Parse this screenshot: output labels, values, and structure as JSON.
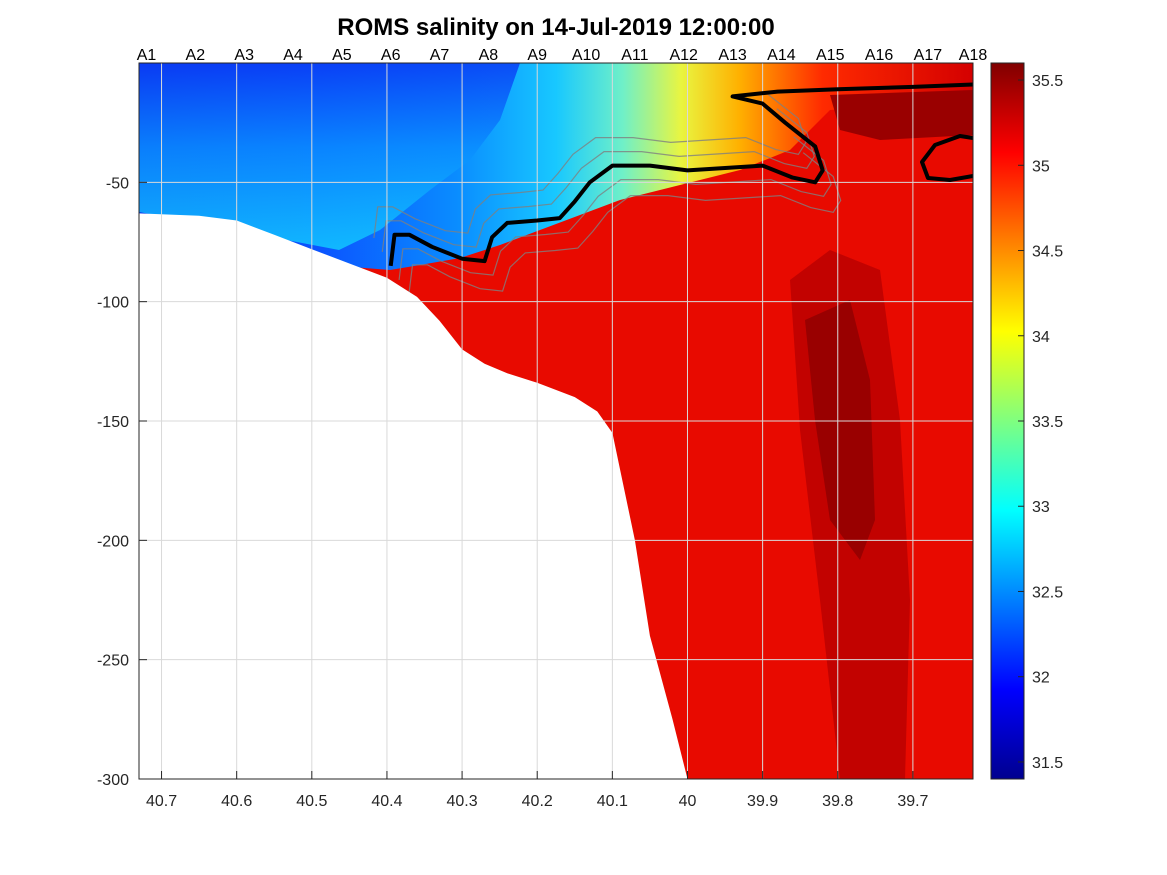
{
  "chart_data": {
    "type": "heatmap",
    "title": "ROMS salinity on 14-Jul-2019 12:00:00",
    "xlabel": "",
    "ylabel": "",
    "x_reversed": true,
    "xlim": [
      40.73,
      39.62
    ],
    "ylim": [
      -300,
      0
    ],
    "grid": true,
    "x_ticks": [
      40.7,
      40.6,
      40.5,
      40.4,
      40.3,
      40.2,
      40.1,
      40,
      39.9,
      39.8,
      39.7
    ],
    "x_tick_labels": [
      "40.7",
      "40.6",
      "40.5",
      "40.4",
      "40.3",
      "40.2",
      "40.1",
      "40",
      "39.9",
      "39.8",
      "39.7"
    ],
    "y_ticks": [
      -50,
      -100,
      -150,
      -200,
      -250,
      -300
    ],
    "y_tick_labels": [
      "-50",
      "-100",
      "-150",
      "-200",
      "-250",
      "-300"
    ],
    "stations": [
      {
        "name": "A1",
        "x": 40.72
      },
      {
        "name": "A2",
        "x": 40.655
      },
      {
        "name": "A3",
        "x": 40.59
      },
      {
        "name": "A4",
        "x": 40.525
      },
      {
        "name": "A5",
        "x": 40.46
      },
      {
        "name": "A6",
        "x": 40.395
      },
      {
        "name": "A7",
        "x": 40.33
      },
      {
        "name": "A8",
        "x": 40.265
      },
      {
        "name": "A9",
        "x": 40.2
      },
      {
        "name": "A10",
        "x": 40.135
      },
      {
        "name": "A11",
        "x": 40.07
      },
      {
        "name": "A12",
        "x": 40.005
      },
      {
        "name": "A13",
        "x": 39.94
      },
      {
        "name": "A14",
        "x": 39.875
      },
      {
        "name": "A15",
        "x": 39.81
      },
      {
        "name": "A16",
        "x": 39.745
      },
      {
        "name": "A17",
        "x": 39.68
      },
      {
        "name": "A18",
        "x": 39.62
      }
    ],
    "colorbar": {
      "range": [
        31.4,
        35.6
      ],
      "ticks": [
        31.5,
        32,
        32.5,
        33,
        33.5,
        34,
        34.5,
        35,
        35.5
      ],
      "tick_labels": [
        "31.5",
        "32",
        "32.5",
        "33",
        "33.5",
        "34",
        "34.5",
        "35",
        "35.5"
      ],
      "colormap": "jet"
    },
    "bathymetry": [
      [
        40.73,
        -63
      ],
      [
        40.65,
        -64
      ],
      [
        40.6,
        -66
      ],
      [
        40.55,
        -72
      ],
      [
        40.5,
        -78
      ],
      [
        40.45,
        -84
      ],
      [
        40.4,
        -90
      ],
      [
        40.36,
        -98
      ],
      [
        40.33,
        -108
      ],
      [
        40.3,
        -120
      ],
      [
        40.27,
        -126
      ],
      [
        40.24,
        -130
      ],
      [
        40.2,
        -134
      ],
      [
        40.15,
        -140
      ],
      [
        40.12,
        -146
      ],
      [
        40.1,
        -155
      ],
      [
        40.09,
        -170
      ],
      [
        40.07,
        -200
      ],
      [
        40.05,
        -240
      ],
      [
        40.02,
        -275
      ],
      [
        40.0,
        -300
      ]
    ],
    "surface_salinity": [
      [
        40.73,
        32.0
      ],
      [
        40.6,
        32.1
      ],
      [
        40.5,
        32.3
      ],
      [
        40.4,
        32.5
      ],
      [
        40.3,
        32.8
      ],
      [
        40.2,
        33.1
      ],
      [
        40.1,
        33.5
      ],
      [
        40.05,
        33.9
      ],
      [
        40.0,
        34.2
      ],
      [
        39.95,
        34.6
      ],
      [
        39.9,
        34.9
      ],
      [
        39.85,
        35.1
      ],
      [
        39.8,
        35.3
      ],
      [
        39.75,
        35.3
      ],
      [
        39.7,
        35.1
      ],
      [
        39.62,
        35.0
      ]
    ],
    "salinity_34_isoline": [
      [
        40.395,
        -85
      ],
      [
        40.39,
        -72
      ],
      [
        40.37,
        -72
      ],
      [
        40.34,
        -77
      ],
      [
        40.3,
        -82
      ],
      [
        40.27,
        -83
      ],
      [
        40.26,
        -73
      ],
      [
        40.24,
        -67
      ],
      [
        40.2,
        -66
      ],
      [
        40.17,
        -65
      ],
      [
        40.15,
        -58
      ],
      [
        40.13,
        -50
      ],
      [
        40.1,
        -43
      ],
      [
        40.05,
        -43
      ],
      [
        40.0,
        -45
      ],
      [
        39.95,
        -44
      ],
      [
        39.9,
        -43
      ],
      [
        39.86,
        -48
      ],
      [
        39.83,
        -50
      ],
      [
        39.82,
        -45
      ],
      [
        39.83,
        -35
      ],
      [
        39.87,
        -25
      ],
      [
        39.9,
        -17
      ],
      [
        39.94,
        -14
      ],
      [
        39.88,
        -12
      ],
      [
        39.8,
        -11
      ],
      [
        39.7,
        -10
      ],
      [
        39.62,
        -9
      ]
    ]
  }
}
